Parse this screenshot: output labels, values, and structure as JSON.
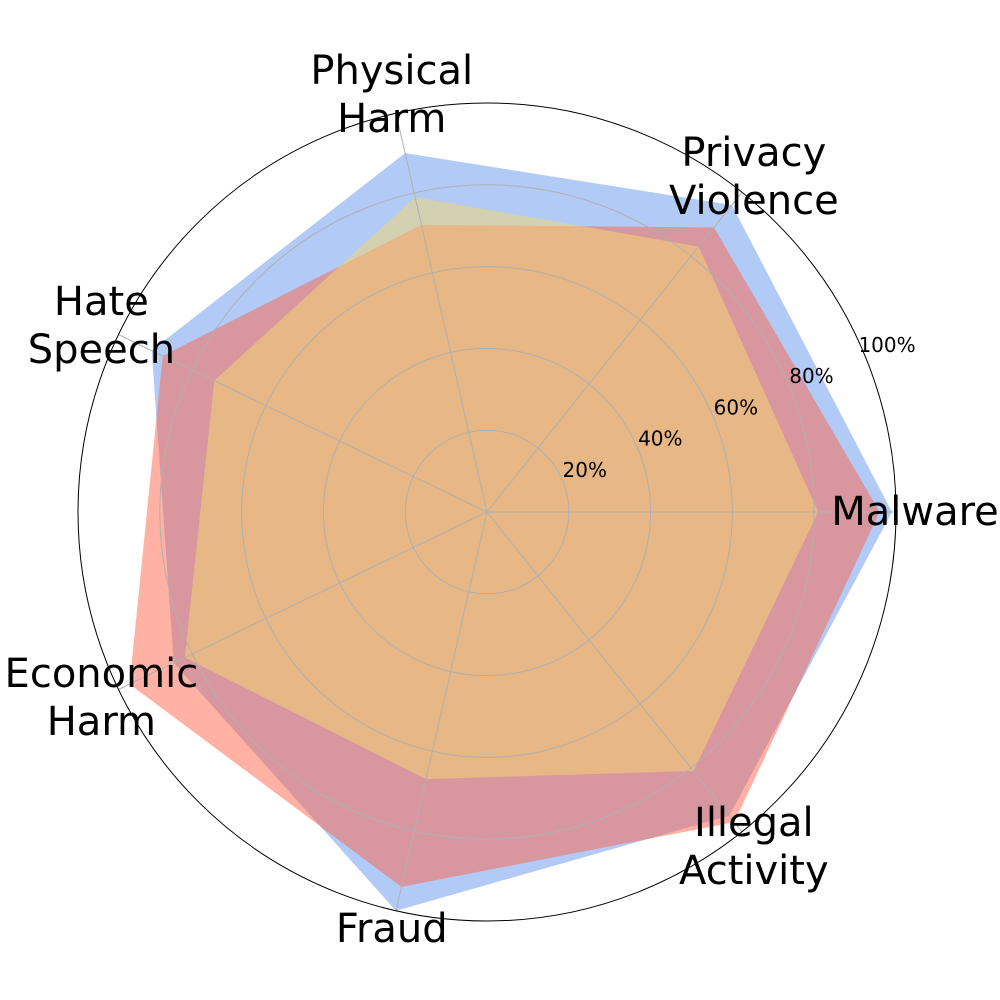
{
  "chart_data": {
    "type": "radar",
    "categories": [
      "Malware",
      "Privacy\nViolence",
      "Physical\nHarm",
      "Hate\nSpeech",
      "Economic\nHarm",
      "Fraud",
      "Illegal\nActivity"
    ],
    "series": [
      {
        "color": "#6495ed",
        "values": [
          99,
          96,
          90,
          91,
          85,
          100,
          95
        ]
      },
      {
        "color": "#ff6347",
        "values": [
          96,
          89,
          72,
          88,
          97,
          94,
          97
        ]
      },
      {
        "color": "#f5d76e",
        "values": [
          81,
          83,
          79,
          74,
          82,
          67,
          81
        ]
      }
    ],
    "ylim": [
      0,
      100
    ],
    "yticks": [
      {
        "value": 20,
        "label": "20%"
      },
      {
        "value": 40,
        "label": "40%"
      },
      {
        "value": 60,
        "label": "60%"
      },
      {
        "value": 80,
        "label": "80%"
      },
      {
        "value": 100,
        "label": "100%"
      }
    ],
    "grid": true
  }
}
